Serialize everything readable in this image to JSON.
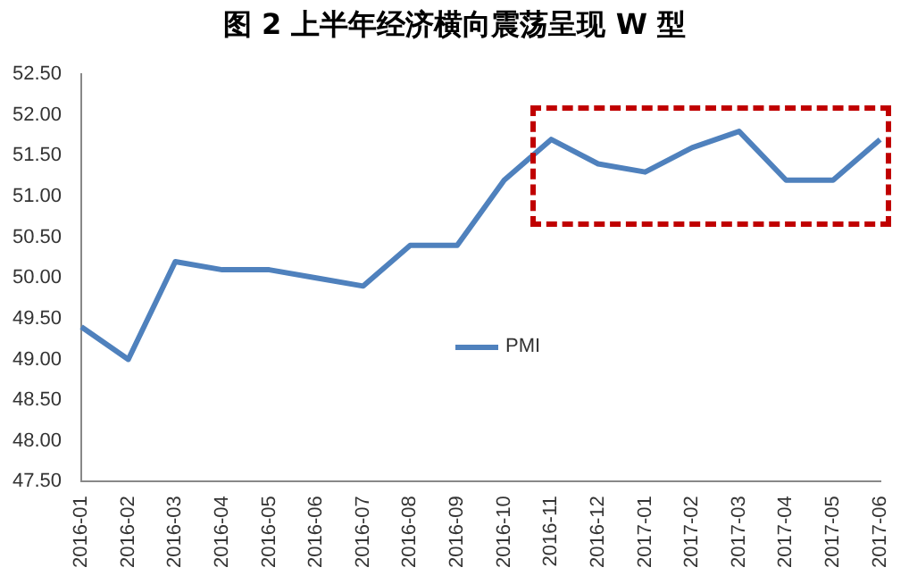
{
  "chart_data": {
    "type": "line",
    "title": "图 2  上半年经济横向震荡呈现 W 型",
    "categories": [
      "2016-01",
      "2016-02",
      "2016-03",
      "2016-04",
      "2016-05",
      "2016-06",
      "2016-07",
      "2016-08",
      "2016-09",
      "2016-10",
      "2016-11",
      "2016-12",
      "2017-01",
      "2017-02",
      "2017-03",
      "2017-04",
      "2017-05",
      "2017-06"
    ],
    "series": [
      {
        "name": "PMI",
        "color": "#4f81bd",
        "values": [
          49.4,
          49.0,
          50.2,
          50.1,
          50.1,
          50.0,
          49.9,
          50.4,
          50.4,
          51.2,
          51.7,
          51.4,
          51.3,
          51.6,
          51.8,
          51.2,
          51.2,
          51.7
        ]
      }
    ],
    "ylim": [
      47.5,
      52.5
    ],
    "yticks": [
      {
        "value": 47.5,
        "label": "47.50"
      },
      {
        "value": 48,
        "label": "48.00"
      },
      {
        "value": 48.5,
        "label": "48.50"
      },
      {
        "value": 49,
        "label": "49.00"
      },
      {
        "value": 49.5,
        "label": "49.50"
      },
      {
        "value": 50,
        "label": "50.00"
      },
      {
        "value": 50.5,
        "label": "50.50"
      },
      {
        "value": 51,
        "label": "51.00"
      },
      {
        "value": 51.5,
        "label": "51.50"
      },
      {
        "value": 52,
        "label": "52.00"
      },
      {
        "value": 52.5,
        "label": "52.50"
      }
    ],
    "grid": false,
    "legend": "bottom",
    "marker": "none",
    "line_style": "solid"
  }
}
